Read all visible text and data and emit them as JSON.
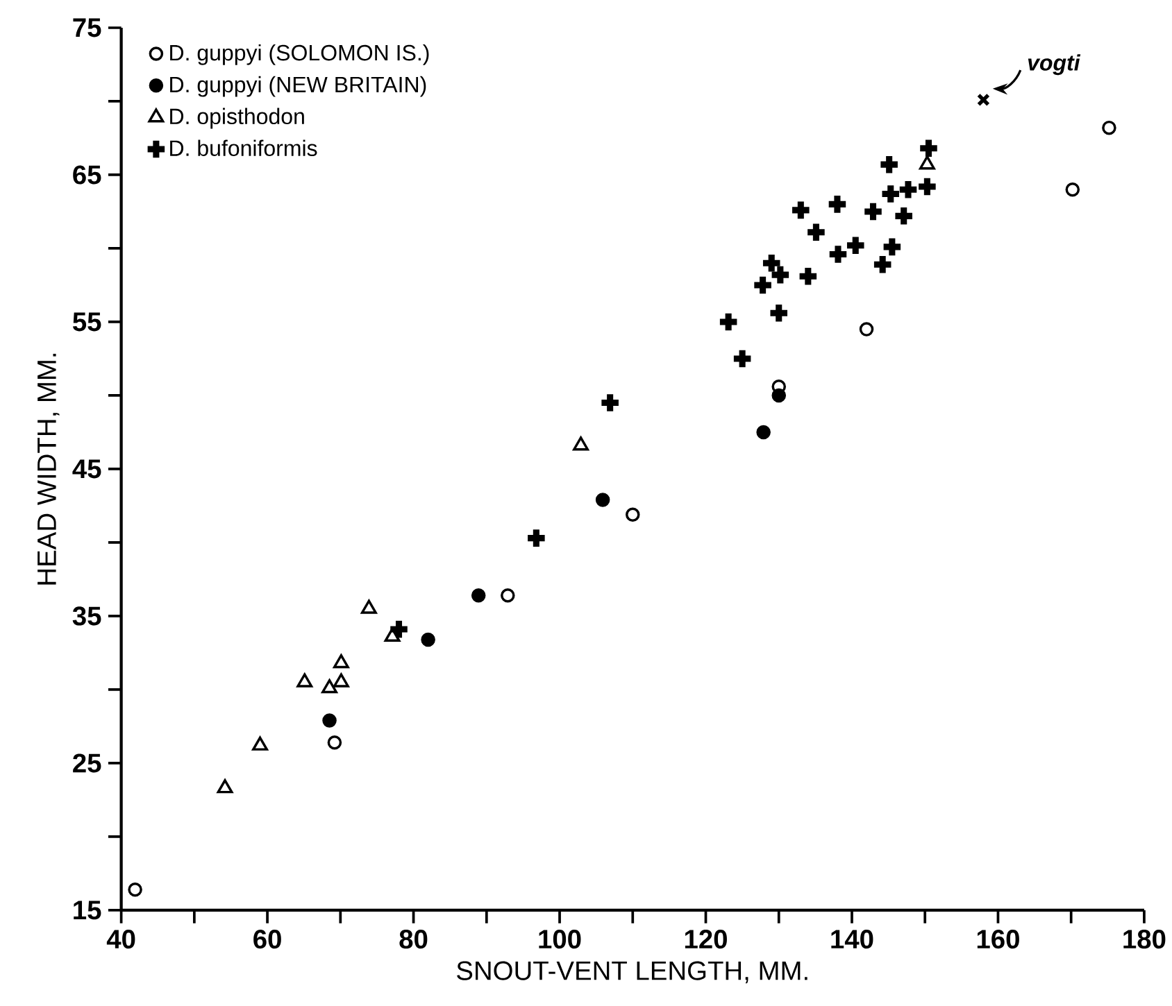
{
  "chart_data": {
    "type": "scatter",
    "xlabel": "SNOUT-VENT LENGTH, MM.",
    "ylabel": "HEAD WIDTH, MM.",
    "xlim": [
      40,
      180
    ],
    "ylim": [
      15,
      75
    ],
    "xticks": [
      40,
      {
        "value": 50,
        "label": null
      },
      60,
      {
        "value": 70,
        "label": null
      },
      80,
      {
        "value": 90,
        "label": null
      },
      100,
      {
        "value": 110,
        "label": null
      },
      120,
      {
        "value": 130,
        "label": null
      },
      140,
      {
        "value": 150,
        "label": null
      },
      160,
      {
        "value": 170,
        "label": null
      },
      180
    ],
    "yticks": [
      15,
      {
        "value": 20,
        "label": null
      },
      25,
      {
        "value": 30,
        "label": null
      },
      35,
      {
        "value": 40,
        "label": null
      },
      45,
      {
        "value": 50,
        "label": null
      },
      55,
      {
        "value": 60,
        "label": null
      },
      65,
      {
        "value": 70,
        "label": null
      },
      75
    ],
    "grid": false,
    "legend": "top left",
    "series": [
      {
        "name": "D. guppyi (SOLOMON IS.)",
        "color": "#000000",
        "marker": "circle",
        "x": [
          41.9,
          69.2,
          92.9,
          110.0,
          130.0,
          142.0,
          170.2,
          175.2
        ],
        "values": [
          16.4,
          26.4,
          36.4,
          41.9,
          50.6,
          54.5,
          64.0,
          68.2
        ]
      },
      {
        "name": "D. guppyi (NEW BRITAIN)",
        "color": "#000000",
        "marker": "dot",
        "x": [
          68.5,
          82.0,
          88.9,
          105.9,
          127.9,
          130.0
        ],
        "values": [
          27.9,
          33.4,
          36.4,
          42.9,
          47.5,
          50.0
        ]
      },
      {
        "name": "D. opisthodon",
        "color": "#000000",
        "marker": "triangle",
        "x": [
          54.2,
          59.0,
          65.1,
          68.5,
          70.1,
          70.1,
          73.9,
          77.1,
          102.9,
          150.3
        ],
        "values": [
          23.3,
          26.2,
          30.5,
          30.1,
          30.5,
          31.8,
          35.5,
          33.6,
          46.6,
          65.7
        ]
      },
      {
        "name": "D. bufoniformis",
        "color": "#000000",
        "marker": "plus",
        "x": [
          78.0,
          96.8,
          106.9,
          123.1,
          125.0,
          127.8,
          129.0,
          130.0,
          130.2,
          133.0,
          134.0,
          135.1,
          138.0,
          138.1,
          140.5,
          142.9,
          144.2,
          145.1,
          145.3,
          145.5,
          147.1,
          147.7,
          150.3,
          150.5
        ],
        "values": [
          34.1,
          40.3,
          49.5,
          55.0,
          52.5,
          57.5,
          59.0,
          55.6,
          58.2,
          62.6,
          58.1,
          61.1,
          63.0,
          59.6,
          60.2,
          62.5,
          58.9,
          65.7,
          63.7,
          60.1,
          62.2,
          64.0,
          64.2,
          66.8
        ]
      },
      {
        "color": "#000000",
        "marker": "cross",
        "x": [
          158.0
        ],
        "values": [
          70.1
        ]
      }
    ],
    "annotations": [
      "*vogti*"
    ]
  }
}
